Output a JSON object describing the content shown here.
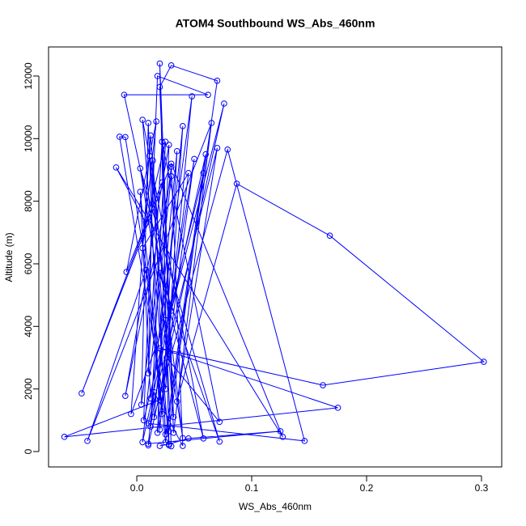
{
  "chart_data": {
    "type": "line",
    "markers": true,
    "title": "ATOM4 Southbound WS_Abs_460nm",
    "x_label": "WS_Abs_460nm",
    "y_label": "Altitude (m)",
    "color": "#0000ff",
    "x": [
      0.02,
      0.028,
      0.045,
      0.125,
      0.01,
      0.015,
      0.04,
      0.03,
      0.004,
      0.01,
      0.02,
      0.048,
      0.012,
      0.003,
      0.025,
      0.07,
      0.03,
      0.02,
      0.032,
      0.065,
      -0.043,
      0.008,
      0.022,
      0.035,
      0.01,
      0.076,
      0.03,
      -0.011,
      0.062,
      0.018,
      0.006,
      0.058,
      0.028,
      -0.015,
      -0.01,
      0.025,
      0.04,
      0.015,
      0.079,
      0.146,
      0.01,
      0.07,
      0.035,
      0.087,
      0.168,
      0.302,
      0.162,
      0.02,
      0.175,
      -0.063,
      0.02,
      0.045,
      0.005,
      0.017,
      -0.009,
      0.022,
      -0.048,
      0.03,
      0.127,
      -0.018,
      0.008,
      0.025,
      0.012,
      0.05,
      0.018,
      0.028,
      -0.01,
      0.03,
      0.005,
      0.06,
      0.025,
      0.014,
      0.01,
      0.022,
      0.072,
      0.026,
      0.011,
      0.04,
      0.003,
      0.072,
      0.02,
      0.058,
      0.005,
      0.028,
      0.02,
      0.032,
      0.012,
      -0.005,
      0.025,
      0.03
    ],
    "values": [
      180,
      240,
      420,
      650,
      250,
      1900,
      180,
      9100,
      1500,
      10500,
      700,
      11350,
      1700,
      8300,
      300,
      11850,
      12340,
      11650,
      600,
      10500,
      340,
      5800,
      1200,
      9600,
      200,
      11120,
      4500,
      11400,
      11400,
      12000,
      1000,
      8900,
      650,
      10060,
      10050,
      2000,
      10400,
      1100,
      9650,
      340,
      900,
      9700,
      1600,
      8560,
      6900,
      2870,
      2120,
      3300,
      1400,
      470,
      1650,
      8900,
      6500,
      10550,
      5740,
      8600,
      1860,
      9200,
      470,
      9080,
      7300,
      9900,
      800,
      9350,
      600,
      9800,
      1780,
      8800,
      300,
      9500,
      550,
      9300,
      2500,
      9900,
      950,
      3000,
      9450,
      430,
      9050,
      320,
      5700,
      420,
      10600,
      200,
      12400,
      1100,
      10100,
      1200,
      4200,
      170
    ],
    "xlim": [
      -0.0768,
      0.3176
    ],
    "ylim": [
      -491,
      12930
    ],
    "xticks": [
      {
        "value": 0,
        "label": "0.0"
      },
      {
        "value": 0.1,
        "label": "0.1"
      },
      {
        "value": 0.2,
        "label": "0.2"
      },
      {
        "value": 0.3,
        "label": "0.3"
      }
    ],
    "yticks": [
      0,
      2000,
      4000,
      6000,
      8000,
      10000,
      12000
    ]
  }
}
